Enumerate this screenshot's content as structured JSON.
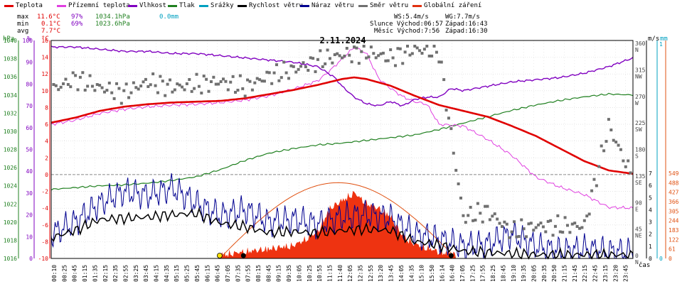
{
  "legend": [
    {
      "label": "Teplota",
      "color": "#e00000"
    },
    {
      "label": "Přízemní teplota",
      "color": "#e040e0"
    },
    {
      "label": "Vlhkost",
      "color": "#8000c0"
    },
    {
      "label": "Tlak",
      "color": "#208020"
    },
    {
      "label": "Srážky",
      "color": "#00a0c0"
    },
    {
      "label": "Rychlost větru",
      "color": "#000000"
    },
    {
      "label": "Náraz větru",
      "color": "#000090"
    },
    {
      "label": "Směr větru",
      "color": "#707070"
    },
    {
      "label": "Globální záření",
      "color": "#e03010"
    }
  ],
  "stats": {
    "max_label": "max",
    "max_temp": "11.6°C",
    "max_hum": "97%",
    "max_press": "1034.1hPa",
    "max_rain": "0.0mm",
    "min_label": "min",
    "min_temp": "0.1°C",
    "min_hum": "69%",
    "min_press": "1023.6hPa",
    "avg_label": "avg",
    "avg_temp": "7.7°C",
    "ws": "WS:5.4m/s",
    "wg": "WG:7.7m/s",
    "sun_rise": "Slunce Východ:06:57",
    "sun_set": "Západ:16:43",
    "moon_rise": "Měsíc Východ:7:56",
    "moon_set": "Západ:16:30"
  },
  "axis_headers": {
    "hpa": "hPa",
    "pct": "%",
    "degc": "°C",
    "ms": "m/s",
    "mm": "mm",
    "time": "čas"
  },
  "colors": {
    "temp": "#e00000",
    "ground": "#e040e0",
    "humidity": "#8000c0",
    "pressure": "#208020",
    "rain": "#00a0c0",
    "wind": "#000000",
    "gust": "#000090",
    "dir": "#707070",
    "radiation": "#ee3311",
    "sun_arc": "#e05010",
    "zero": "#888888",
    "grid": "#d8d8d8",
    "axis_pct": "#e00000"
  },
  "chart_data": {
    "type": "line",
    "title": "2.11.2024",
    "x_ticks": [
      "00:10",
      "00:25",
      "00:45",
      "01:15",
      "01:35",
      "02:15",
      "02:35",
      "02:55",
      "03:25",
      "03:45",
      "04:15",
      "04:35",
      "05:15",
      "05:25",
      "05:45",
      "06:15",
      "06:45",
      "07:05",
      "07:35",
      "07:55",
      "08:15",
      "08:45",
      "09:15",
      "09:35",
      "10:05",
      "10:25",
      "10:55",
      "11:15",
      "11:40",
      "12:05",
      "12:35",
      "12:55",
      "13:20",
      "13:45",
      "14:05",
      "14:35",
      "15:10",
      "15:50",
      "16:14",
      "16:40",
      "17:05",
      "17:25",
      "17:55",
      "18:25",
      "18:45",
      "19:10",
      "19:35",
      "20:05",
      "20:35",
      "20:50",
      "21:15",
      "21:45",
      "22:15",
      "22:45",
      "23:15",
      "23:20",
      "23:45"
    ],
    "y_left_hpa": [
      1016,
      1018,
      1020,
      1022,
      1024,
      1026,
      1028,
      1030,
      1032,
      1034,
      1036,
      1038,
      1040
    ],
    "y_left_pct": [
      0,
      10,
      20,
      30,
      40,
      50,
      60,
      70,
      80,
      90,
      100
    ],
    "y_left_degc": [
      -10,
      -8,
      -6,
      -4,
      -2,
      0,
      2,
      4,
      6,
      8,
      10,
      12,
      14,
      16
    ],
    "y_right_ms": [
      0,
      1,
      2,
      3,
      4,
      5,
      6,
      7
    ],
    "y_right_dir_deg": [
      0,
      45,
      90,
      135,
      180,
      225,
      270,
      315,
      360
    ],
    "y_right_dir_lbl": [
      "N",
      "NE",
      "E",
      "SE",
      "S",
      "SW",
      "W",
      "NW",
      "N"
    ],
    "y_right_wm2": [
      0,
      61,
      122,
      183,
      244,
      305,
      366,
      427,
      488,
      549
    ],
    "series": [
      {
        "name": "Teplota",
        "unit": "°C",
        "x_hours": [
          0,
          1,
          2,
          3,
          4,
          5,
          6,
          7,
          8,
          9,
          10,
          11,
          12,
          12.5,
          13,
          14,
          15,
          16,
          17,
          18,
          19,
          20,
          21,
          22,
          23,
          24
        ],
        "values": [
          6.2,
          6.8,
          7.6,
          8.1,
          8.4,
          8.6,
          8.7,
          8.8,
          9.1,
          9.6,
          10.1,
          10.7,
          11.4,
          11.6,
          11.4,
          10.6,
          9.4,
          8.3,
          7.6,
          6.9,
          5.8,
          4.6,
          3.1,
          1.6,
          0.5,
          0.1
        ]
      },
      {
        "name": "Přízemní teplota",
        "unit": "°C",
        "x_hours": [
          0,
          1,
          2,
          3,
          4,
          5,
          6,
          7,
          8,
          9,
          10,
          11,
          11.5,
          12,
          12.5,
          13,
          13.5,
          14,
          14.5,
          15,
          15.5,
          16,
          17,
          18,
          19,
          20,
          21,
          22,
          23,
          24
        ],
        "values": [
          6.0,
          6.5,
          7.3,
          7.8,
          8.1,
          8.3,
          8.4,
          8.6,
          8.9,
          9.4,
          10.2,
          11.2,
          12.4,
          13.8,
          15.2,
          14.5,
          11.5,
          10.3,
          9.3,
          8.7,
          8.4,
          6.0,
          5.8,
          4.2,
          2.3,
          -0.3,
          -1.5,
          -2.4,
          -3.9,
          -4.0
        ]
      },
      {
        "name": "Vlhkost",
        "unit": "%",
        "x_hours": [
          0,
          1,
          2,
          3,
          4,
          5,
          6,
          7,
          8,
          9,
          10,
          11,
          11.7,
          12,
          12.5,
          13,
          13.5,
          14,
          14.5,
          15,
          15.5,
          16,
          16.5,
          17,
          18,
          19,
          20,
          21,
          22,
          23,
          24
        ],
        "values": [
          97,
          97,
          96,
          95,
          95,
          94,
          94,
          93,
          92,
          91,
          90,
          88,
          83,
          79,
          74,
          71,
          70,
          72,
          70,
          73,
          74,
          74,
          78,
          77,
          79,
          81,
          82,
          83,
          85,
          88,
          92
        ]
      },
      {
        "name": "Tlak",
        "unit": "hPa",
        "x_hours": [
          0,
          1,
          2,
          3,
          4,
          5,
          6,
          7,
          8,
          9,
          10,
          11,
          12,
          13,
          14,
          15,
          16,
          17,
          18,
          19,
          20,
          21,
          22,
          23,
          24
        ],
        "values": [
          1023.6,
          1023.8,
          1024.0,
          1024.1,
          1024.3,
          1024.6,
          1025.0,
          1025.8,
          1026.8,
          1027.6,
          1028.1,
          1028.5,
          1028.7,
          1029.0,
          1029.3,
          1029.6,
          1030.2,
          1030.9,
          1031.6,
          1032.3,
          1032.9,
          1033.4,
          1033.8,
          1034.1,
          1034.0
        ]
      },
      {
        "name": "Srážky",
        "unit": "mm",
        "x_hours": [
          0,
          24
        ],
        "values": [
          0.0,
          0.0
        ]
      },
      {
        "name": "Rychlost větru",
        "unit": "m/s",
        "x_hours": [
          0,
          1,
          2,
          3,
          4,
          5,
          6,
          7,
          8,
          9,
          10,
          11,
          12,
          13,
          14,
          15,
          16,
          17,
          18,
          19,
          20,
          21,
          22,
          23,
          24
        ],
        "values": [
          1.7,
          2.3,
          3.2,
          3.3,
          3.4,
          3.6,
          3.7,
          2.9,
          2.6,
          2.1,
          2.2,
          2.1,
          2.3,
          2.4,
          2.3,
          1.4,
          1.1,
          0.6,
          0.5,
          0.4,
          0.3,
          0.3,
          0.3,
          0.3,
          0.3
        ]
      },
      {
        "name": "Náraz větru",
        "unit": "m/s",
        "x_hours": [
          0,
          1,
          2,
          3,
          4,
          5,
          6,
          7,
          8,
          9,
          10,
          11,
          12,
          13,
          14,
          15,
          16,
          17,
          18,
          19,
          20,
          21,
          22,
          23,
          24
        ],
        "values": [
          2.0,
          3.0,
          4.5,
          5.5,
          5.2,
          5.8,
          4.5,
          3.5,
          4.0,
          3.0,
          3.2,
          2.8,
          3.4,
          3.6,
          3.3,
          2.0,
          1.6,
          1.0,
          1.2,
          2.0,
          1.0,
          0.6,
          0.8,
          0.6,
          0.5
        ]
      },
      {
        "name": "Směr větru",
        "unit": "°",
        "x_hours": [
          0,
          1,
          2,
          3,
          4,
          5,
          6,
          7,
          8,
          9,
          10,
          11,
          12,
          13,
          14,
          15,
          16,
          17,
          18,
          19,
          20,
          21,
          22,
          23,
          24
        ],
        "values": [
          285,
          305,
          290,
          280,
          300,
          290,
          295,
          300,
          290,
          310,
          320,
          335,
          345,
          350,
          340,
          355,
          350,
          70,
          80,
          45,
          55,
          55,
          55,
          225,
          135
        ]
      },
      {
        "name": "Globální záření",
        "unit": "W/m²",
        "x_hours": [
          7,
          8,
          9,
          10,
          10.5,
          11,
          11.5,
          12,
          12.5,
          13,
          13.5,
          14,
          14.5,
          15,
          16,
          16.7
        ],
        "values": [
          0,
          20,
          40,
          60,
          100,
          150,
          300,
          350,
          400,
          330,
          300,
          250,
          120,
          70,
          20,
          0
        ]
      }
    ]
  }
}
